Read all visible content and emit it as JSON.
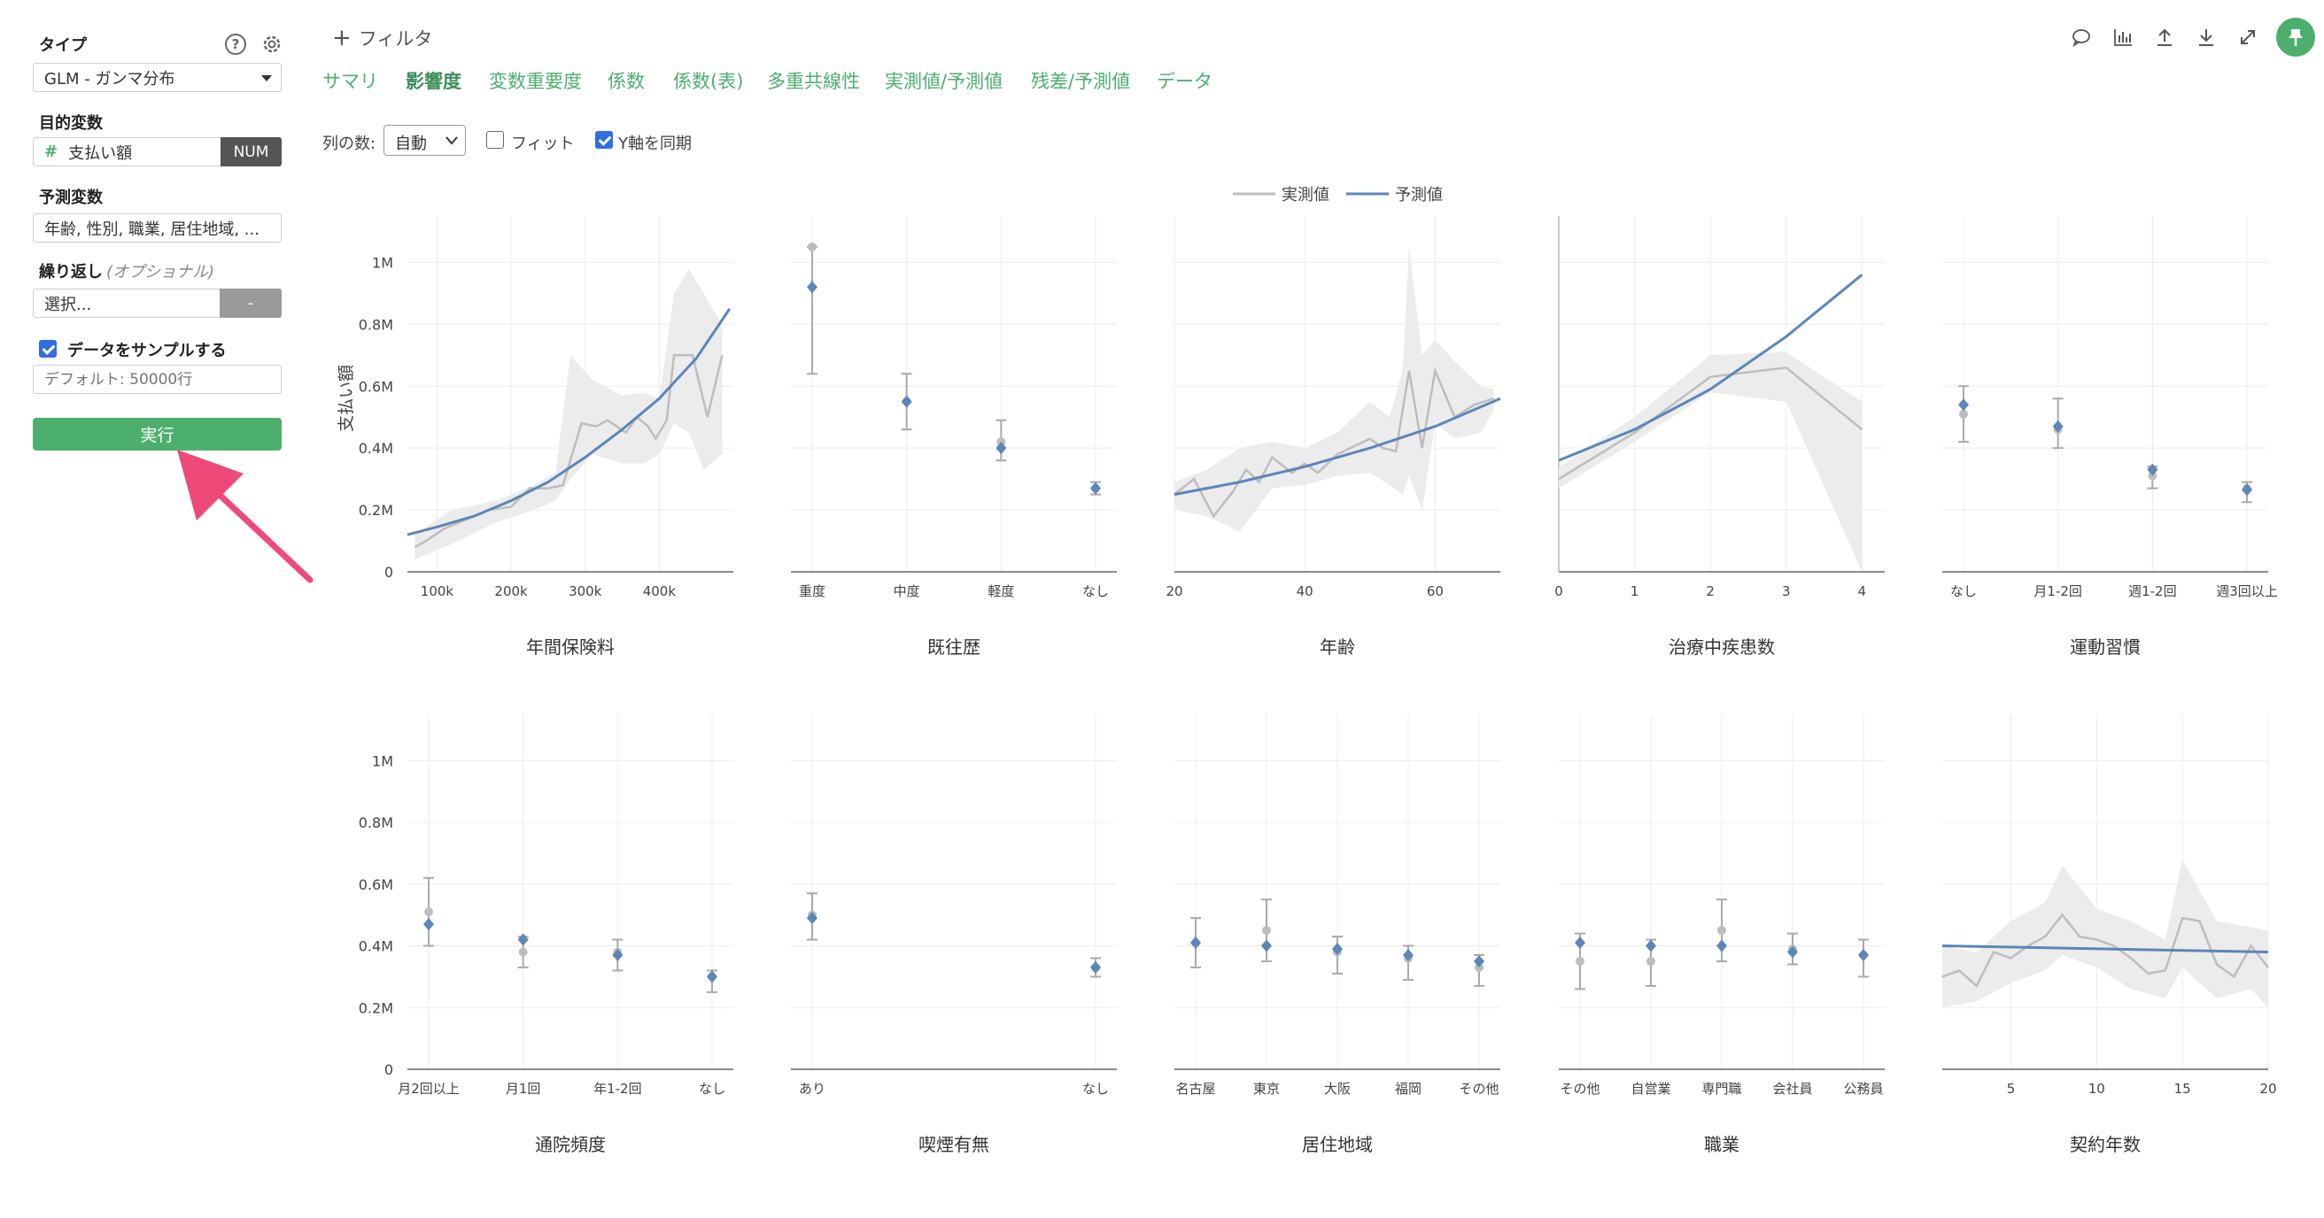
{
  "sidebar": {
    "type_label": "タイプ",
    "type_value": "GLM - ガンマ分布",
    "target_label": "目的変数",
    "target_value": "支払い額",
    "target_tag": "NUM",
    "predictor_label": "予測変数",
    "predictor_value": "年齢, 性別, 職業, 居住地域, ...",
    "repeat_label": "繰り返し",
    "repeat_optional": "(オプショナル)",
    "repeat_value": "選択...",
    "repeat_tag": "-",
    "sample_label": "データをサンプルする",
    "sample_checked": true,
    "sample_placeholder": "デフォルト: 50000行",
    "run_label": "実行"
  },
  "toolbar": {
    "filter_label": "フィルタ",
    "icons": [
      "comment-icon",
      "chart-icon",
      "upload-icon",
      "download-icon",
      "expand-icon",
      "pin-icon"
    ]
  },
  "tabs": [
    "サマリ",
    "影響度",
    "変数重要度",
    "係数",
    "係数(表)",
    "多重共線性",
    "実測値/予測値",
    "残差/予測値",
    "データ"
  ],
  "active_tab": "影響度",
  "options": {
    "cols_label": "列の数:",
    "cols_value": "自動",
    "fit_label": "フィット",
    "fit_checked": false,
    "sync_label": "Y軸を同期",
    "sync_checked": true
  },
  "colors": {
    "accent": "#4caf6e",
    "actual": "#bdbdbd",
    "pred": "#5b86b8",
    "band": "#ececec",
    "arrow": "#ee4a79"
  },
  "chart_data": {
    "legend": [
      "実測値",
      "予測値"
    ],
    "ylabel": "支払い額",
    "ylim": [
      0,
      1150000
    ],
    "yticks": [
      "0",
      "0.2M",
      "0.4M",
      "0.6M",
      "0.8M",
      "1M"
    ],
    "ytick_values": [
      0,
      200000,
      400000,
      600000,
      800000,
      1000000
    ],
    "panels": [
      {
        "title": "年間保険料",
        "type": "line",
        "xlim": [
          60000,
          500000
        ],
        "xticks": [
          100000,
          200000,
          300000,
          400000
        ],
        "xtick_labels": [
          "100k",
          "200k",
          "300k",
          "400k"
        ],
        "actual": [
          [
            70000,
            80000
          ],
          [
            85000,
            100000
          ],
          [
            110000,
            140000
          ],
          [
            140000,
            170000
          ],
          [
            170000,
            200000
          ],
          [
            200000,
            210000
          ],
          [
            225000,
            270000
          ],
          [
            250000,
            270000
          ],
          [
            270000,
            280000
          ],
          [
            295000,
            480000
          ],
          [
            315000,
            470000
          ],
          [
            330000,
            490000
          ],
          [
            355000,
            450000
          ],
          [
            370000,
            500000
          ],
          [
            385000,
            470000
          ],
          [
            395000,
            430000
          ],
          [
            410000,
            490000
          ],
          [
            420000,
            700000
          ],
          [
            445000,
            700000
          ],
          [
            465000,
            500000
          ],
          [
            485000,
            700000
          ]
        ],
        "band_upper": [
          [
            70000,
            120000
          ],
          [
            120000,
            200000
          ],
          [
            180000,
            230000
          ],
          [
            230000,
            280000
          ],
          [
            260000,
            320000
          ],
          [
            280000,
            700000
          ],
          [
            310000,
            620000
          ],
          [
            350000,
            570000
          ],
          [
            380000,
            580000
          ],
          [
            400000,
            560000
          ],
          [
            420000,
            900000
          ],
          [
            440000,
            980000
          ],
          [
            460000,
            900000
          ],
          [
            485000,
            800000
          ]
        ],
        "band_lower": [
          [
            70000,
            40000
          ],
          [
            120000,
            90000
          ],
          [
            180000,
            160000
          ],
          [
            230000,
            200000
          ],
          [
            260000,
            230000
          ],
          [
            280000,
            300000
          ],
          [
            310000,
            380000
          ],
          [
            350000,
            350000
          ],
          [
            380000,
            350000
          ],
          [
            400000,
            380000
          ],
          [
            420000,
            480000
          ],
          [
            440000,
            450000
          ],
          [
            460000,
            330000
          ],
          [
            485000,
            380000
          ]
        ],
        "pred": [
          [
            60000,
            120000
          ],
          [
            100000,
            145000
          ],
          [
            150000,
            180000
          ],
          [
            200000,
            230000
          ],
          [
            250000,
            290000
          ],
          [
            300000,
            370000
          ],
          [
            350000,
            460000
          ],
          [
            400000,
            560000
          ],
          [
            450000,
            690000
          ],
          [
            495000,
            850000
          ]
        ]
      },
      {
        "title": "既往歴",
        "type": "category",
        "categories": [
          "重度",
          "中度",
          "軽度",
          "なし"
        ],
        "actual": [
          1050000,
          550000,
          420000,
          270000
        ],
        "err_low": [
          640000,
          460000,
          360000,
          250000
        ],
        "err_high": [
          1050000,
          640000,
          490000,
          290000
        ],
        "pred": [
          920000,
          550000,
          400000,
          270000
        ]
      },
      {
        "title": "年齢",
        "type": "line",
        "xlim": [
          20,
          70
        ],
        "xticks": [
          20,
          40,
          60
        ],
        "xtick_labels": [
          "20",
          "40",
          "60"
        ],
        "actual": [
          [
            20,
            250000
          ],
          [
            23,
            300000
          ],
          [
            26,
            180000
          ],
          [
            29,
            260000
          ],
          [
            31,
            330000
          ],
          [
            33,
            290000
          ],
          [
            35,
            370000
          ],
          [
            38,
            320000
          ],
          [
            40,
            350000
          ],
          [
            42,
            320000
          ],
          [
            45,
            380000
          ],
          [
            48,
            410000
          ],
          [
            50,
            430000
          ],
          [
            52,
            400000
          ],
          [
            54,
            390000
          ],
          [
            56,
            650000
          ],
          [
            58,
            400000
          ],
          [
            60,
            650000
          ],
          [
            63,
            500000
          ],
          [
            66,
            540000
          ],
          [
            69,
            560000
          ]
        ],
        "band_upper": [
          [
            20,
            290000
          ],
          [
            25,
            330000
          ],
          [
            30,
            400000
          ],
          [
            35,
            420000
          ],
          [
            40,
            400000
          ],
          [
            45,
            450000
          ],
          [
            50,
            550000
          ],
          [
            53,
            500000
          ],
          [
            55,
            650000
          ],
          [
            56,
            1050000
          ],
          [
            58,
            700000
          ],
          [
            60,
            750000
          ],
          [
            63,
            680000
          ],
          [
            67,
            600000
          ],
          [
            69,
            590000
          ]
        ],
        "band_lower": [
          [
            20,
            200000
          ],
          [
            25,
            180000
          ],
          [
            30,
            130000
          ],
          [
            35,
            270000
          ],
          [
            40,
            280000
          ],
          [
            45,
            310000
          ],
          [
            50,
            320000
          ],
          [
            53,
            280000
          ],
          [
            55,
            250000
          ],
          [
            56,
            310000
          ],
          [
            58,
            200000
          ],
          [
            60,
            480000
          ],
          [
            63,
            430000
          ],
          [
            67,
            450000
          ],
          [
            69,
            520000
          ]
        ],
        "pred": [
          [
            20,
            250000
          ],
          [
            30,
            290000
          ],
          [
            40,
            340000
          ],
          [
            50,
            400000
          ],
          [
            60,
            470000
          ],
          [
            70,
            560000
          ]
        ]
      },
      {
        "title": "治療中疾患数",
        "type": "line",
        "xlim": [
          0,
          4.3
        ],
        "xticks": [
          0,
          1,
          2,
          3,
          4
        ],
        "xtick_labels": [
          "0",
          "1",
          "2",
          "3",
          "4"
        ],
        "actual": [
          [
            0,
            300000
          ],
          [
            1,
            450000
          ],
          [
            2,
            630000
          ],
          [
            3,
            660000
          ],
          [
            4,
            460000
          ]
        ],
        "band_upper": [
          [
            0,
            340000
          ],
          [
            1,
            500000
          ],
          [
            2,
            700000
          ],
          [
            3,
            710000
          ],
          [
            4,
            550000
          ]
        ],
        "band_lower": [
          [
            0,
            270000
          ],
          [
            1,
            420000
          ],
          [
            2,
            580000
          ],
          [
            3,
            550000
          ],
          [
            4,
            0
          ]
        ],
        "pred": [
          [
            0,
            360000
          ],
          [
            1,
            460000
          ],
          [
            2,
            590000
          ],
          [
            3,
            760000
          ],
          [
            4,
            960000
          ]
        ]
      },
      {
        "title": "運動習慣",
        "type": "category",
        "categories": [
          "なし",
          "月1-2回",
          "週1-2回",
          "週3回以上"
        ],
        "actual": [
          510000,
          460000,
          310000,
          270000
        ],
        "err_low": [
          420000,
          400000,
          270000,
          225000
        ],
        "err_high": [
          600000,
          560000,
          340000,
          290000
        ],
        "pred": [
          540000,
          470000,
          330000,
          265000
        ]
      },
      {
        "title": "通院頻度",
        "type": "category",
        "categories": [
          "月2回以上",
          "月1回",
          "年1-2回",
          "なし"
        ],
        "actual": [
          510000,
          380000,
          380000,
          300000
        ],
        "err_low": [
          400000,
          330000,
          320000,
          250000
        ],
        "err_high": [
          620000,
          430000,
          420000,
          320000
        ],
        "pred": [
          470000,
          420000,
          370000,
          300000
        ]
      },
      {
        "title": "喫煙有無",
        "type": "category",
        "categories": [
          "あり",
          "なし"
        ],
        "actual": [
          500000,
          330000
        ],
        "err_low": [
          420000,
          300000
        ],
        "err_high": [
          570000,
          360000
        ],
        "pred": [
          490000,
          330000
        ]
      },
      {
        "title": "居住地域",
        "type": "category",
        "categories": [
          "名古屋",
          "東京",
          "大阪",
          "福岡",
          "その他"
        ],
        "actual": [
          410000,
          450000,
          380000,
          360000,
          330000
        ],
        "err_low": [
          330000,
          350000,
          310000,
          290000,
          270000
        ],
        "err_high": [
          490000,
          550000,
          430000,
          400000,
          370000
        ],
        "pred": [
          410000,
          400000,
          390000,
          370000,
          350000
        ]
      },
      {
        "title": "職業",
        "type": "category",
        "categories": [
          "その他",
          "自営業",
          "専門職",
          "会社員",
          "公務員"
        ],
        "actual": [
          350000,
          350000,
          450000,
          390000,
          370000
        ],
        "err_low": [
          260000,
          270000,
          350000,
          340000,
          300000
        ],
        "err_high": [
          440000,
          420000,
          550000,
          440000,
          420000
        ],
        "pred": [
          410000,
          400000,
          400000,
          380000,
          370000
        ]
      },
      {
        "title": "契約年数",
        "type": "line",
        "xlim": [
          1,
          20
        ],
        "xticks": [
          5,
          10,
          15,
          20
        ],
        "xtick_labels": [
          "5",
          "10",
          "15",
          "20"
        ],
        "actual": [
          [
            1,
            300000
          ],
          [
            2,
            320000
          ],
          [
            3,
            270000
          ],
          [
            4,
            380000
          ],
          [
            5,
            360000
          ],
          [
            6,
            400000
          ],
          [
            7,
            430000
          ],
          [
            8,
            500000
          ],
          [
            9,
            430000
          ],
          [
            10,
            420000
          ],
          [
            11,
            400000
          ],
          [
            12,
            360000
          ],
          [
            13,
            310000
          ],
          [
            14,
            320000
          ],
          [
            15,
            490000
          ],
          [
            16,
            480000
          ],
          [
            17,
            340000
          ],
          [
            18,
            300000
          ],
          [
            19,
            400000
          ],
          [
            20,
            330000
          ]
        ],
        "band_upper": [
          [
            1,
            400000
          ],
          [
            3,
            380000
          ],
          [
            5,
            480000
          ],
          [
            7,
            540000
          ],
          [
            8,
            660000
          ],
          [
            10,
            520000
          ],
          [
            12,
            480000
          ],
          [
            14,
            420000
          ],
          [
            15,
            680000
          ],
          [
            17,
            480000
          ],
          [
            19,
            460000
          ],
          [
            20,
            450000
          ]
        ],
        "band_lower": [
          [
            1,
            200000
          ],
          [
            3,
            220000
          ],
          [
            5,
            280000
          ],
          [
            7,
            320000
          ],
          [
            8,
            370000
          ],
          [
            10,
            330000
          ],
          [
            12,
            260000
          ],
          [
            14,
            230000
          ],
          [
            15,
            330000
          ],
          [
            17,
            230000
          ],
          [
            19,
            260000
          ],
          [
            20,
            200000
          ]
        ],
        "pred": [
          [
            1,
            400000
          ],
          [
            20,
            380000
          ]
        ]
      }
    ]
  }
}
